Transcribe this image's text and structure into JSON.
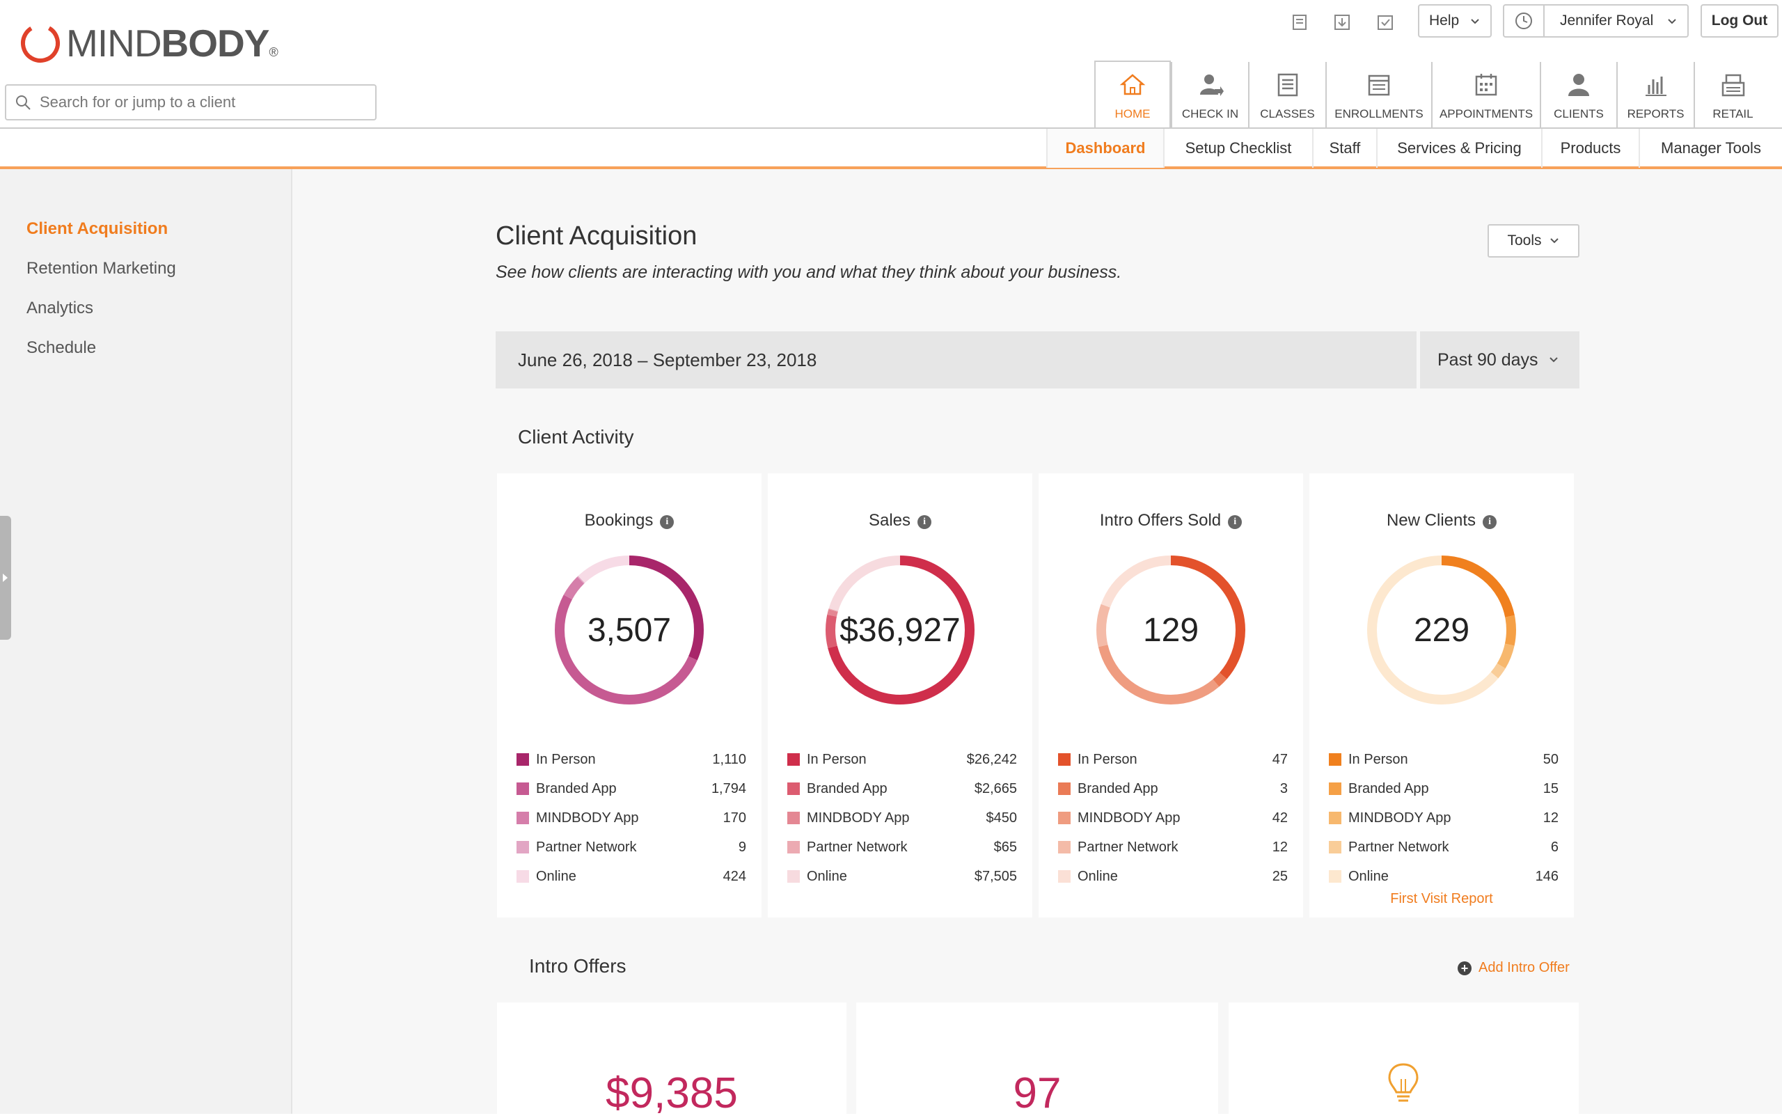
{
  "brand": {
    "name_light": "MIND",
    "name_bold": "BODY",
    "reg": "®",
    "accent": "#f07c1e"
  },
  "search": {
    "placeholder": "Search for or jump to a client"
  },
  "topbar": {
    "help_label": "Help",
    "user_name": "Jennifer Royal",
    "logout_label": "Log Out",
    "icons": [
      "notes-icon",
      "download-icon",
      "checklist-icon",
      "clock-icon"
    ]
  },
  "nav": {
    "tabs": [
      {
        "label": "HOME",
        "icon": "home-icon"
      },
      {
        "label": "CHECK IN",
        "icon": "check-in-icon"
      },
      {
        "label": "CLASSES",
        "icon": "classes-icon"
      },
      {
        "label": "ENROLLMENTS",
        "icon": "enrollments-icon"
      },
      {
        "label": "APPOINTMENTS",
        "icon": "appointments-icon"
      },
      {
        "label": "CLIENTS",
        "icon": "clients-icon"
      },
      {
        "label": "REPORTS",
        "icon": "reports-icon"
      },
      {
        "label": "RETAIL",
        "icon": "retail-icon"
      }
    ],
    "active": "HOME"
  },
  "subnav": {
    "items": [
      "Dashboard",
      "Setup Checklist",
      "Staff",
      "Services & Pricing",
      "Products",
      "Manager Tools"
    ],
    "active": "Dashboard"
  },
  "sidebar": {
    "items": [
      "Client Acquisition",
      "Retention Marketing",
      "Analytics",
      "Schedule"
    ],
    "active": "Client Acquisition"
  },
  "page": {
    "title": "Client Acquisition",
    "subtitle": "See how clients are interacting with you and what they think about your business.",
    "tools_label": "Tools",
    "date_range": "June 26, 2018 – September 23, 2018",
    "range_option": "Past 90 days",
    "activity_heading": "Client Activity",
    "offers_heading": "Intro Offers",
    "add_offer_label": "Add Intro Offer"
  },
  "cards": [
    {
      "title": "Bookings",
      "total": "3,507",
      "colors": [
        "#a8266a",
        "#c65a92",
        "#d57eaa",
        "#e2a6c4",
        "#f7dbe6"
      ],
      "rows": [
        {
          "label": "In Person",
          "value": "1,110",
          "num": 1110
        },
        {
          "label": "Branded App",
          "value": "1,794",
          "num": 1794
        },
        {
          "label": "MINDBODY App",
          "value": "170",
          "num": 170
        },
        {
          "label": "Partner Network",
          "value": "9",
          "num": 9
        },
        {
          "label": "Online",
          "value": "424",
          "num": 424
        }
      ]
    },
    {
      "title": "Sales",
      "total": "$36,927",
      "colors": [
        "#cf2e4b",
        "#dc5c70",
        "#e48793",
        "#ecaab2",
        "#f7dbdf"
      ],
      "rows": [
        {
          "label": "In Person",
          "value": "$26,242",
          "num": 26242
        },
        {
          "label": "Branded App",
          "value": "$2,665",
          "num": 2665
        },
        {
          "label": "MINDBODY App",
          "value": "$450",
          "num": 450
        },
        {
          "label": "Partner Network",
          "value": "$65",
          "num": 65
        },
        {
          "label": "Online",
          "value": "$7,505",
          "num": 7505
        }
      ]
    },
    {
      "title": "Intro Offers Sold",
      "total": "129",
      "colors": [
        "#e3522b",
        "#ea7b56",
        "#ef9c80",
        "#f4bba8",
        "#fbe0d6"
      ],
      "rows": [
        {
          "label": "In Person",
          "value": "47",
          "num": 47
        },
        {
          "label": "Branded App",
          "value": "3",
          "num": 3
        },
        {
          "label": "MINDBODY App",
          "value": "42",
          "num": 42
        },
        {
          "label": "Partner Network",
          "value": "12",
          "num": 12
        },
        {
          "label": "Online",
          "value": "25",
          "num": 25
        }
      ]
    },
    {
      "title": "New Clients",
      "total": "229",
      "colors": [
        "#f0801e",
        "#f5a046",
        "#f7b86e",
        "#f9cd98",
        "#fde8cf"
      ],
      "rows": [
        {
          "label": "In Person",
          "value": "50",
          "num": 50
        },
        {
          "label": "Branded App",
          "value": "15",
          "num": 15
        },
        {
          "label": "MINDBODY App",
          "value": "12",
          "num": 12
        },
        {
          "label": "Partner Network",
          "value": "6",
          "num": 6
        },
        {
          "label": "Online",
          "value": "146",
          "num": 146
        }
      ],
      "link": "First Visit Report"
    }
  ],
  "offers": [
    {
      "value": "$9,385"
    },
    {
      "value": "97"
    },
    {
      "icon": "lightbulb-icon"
    }
  ]
}
